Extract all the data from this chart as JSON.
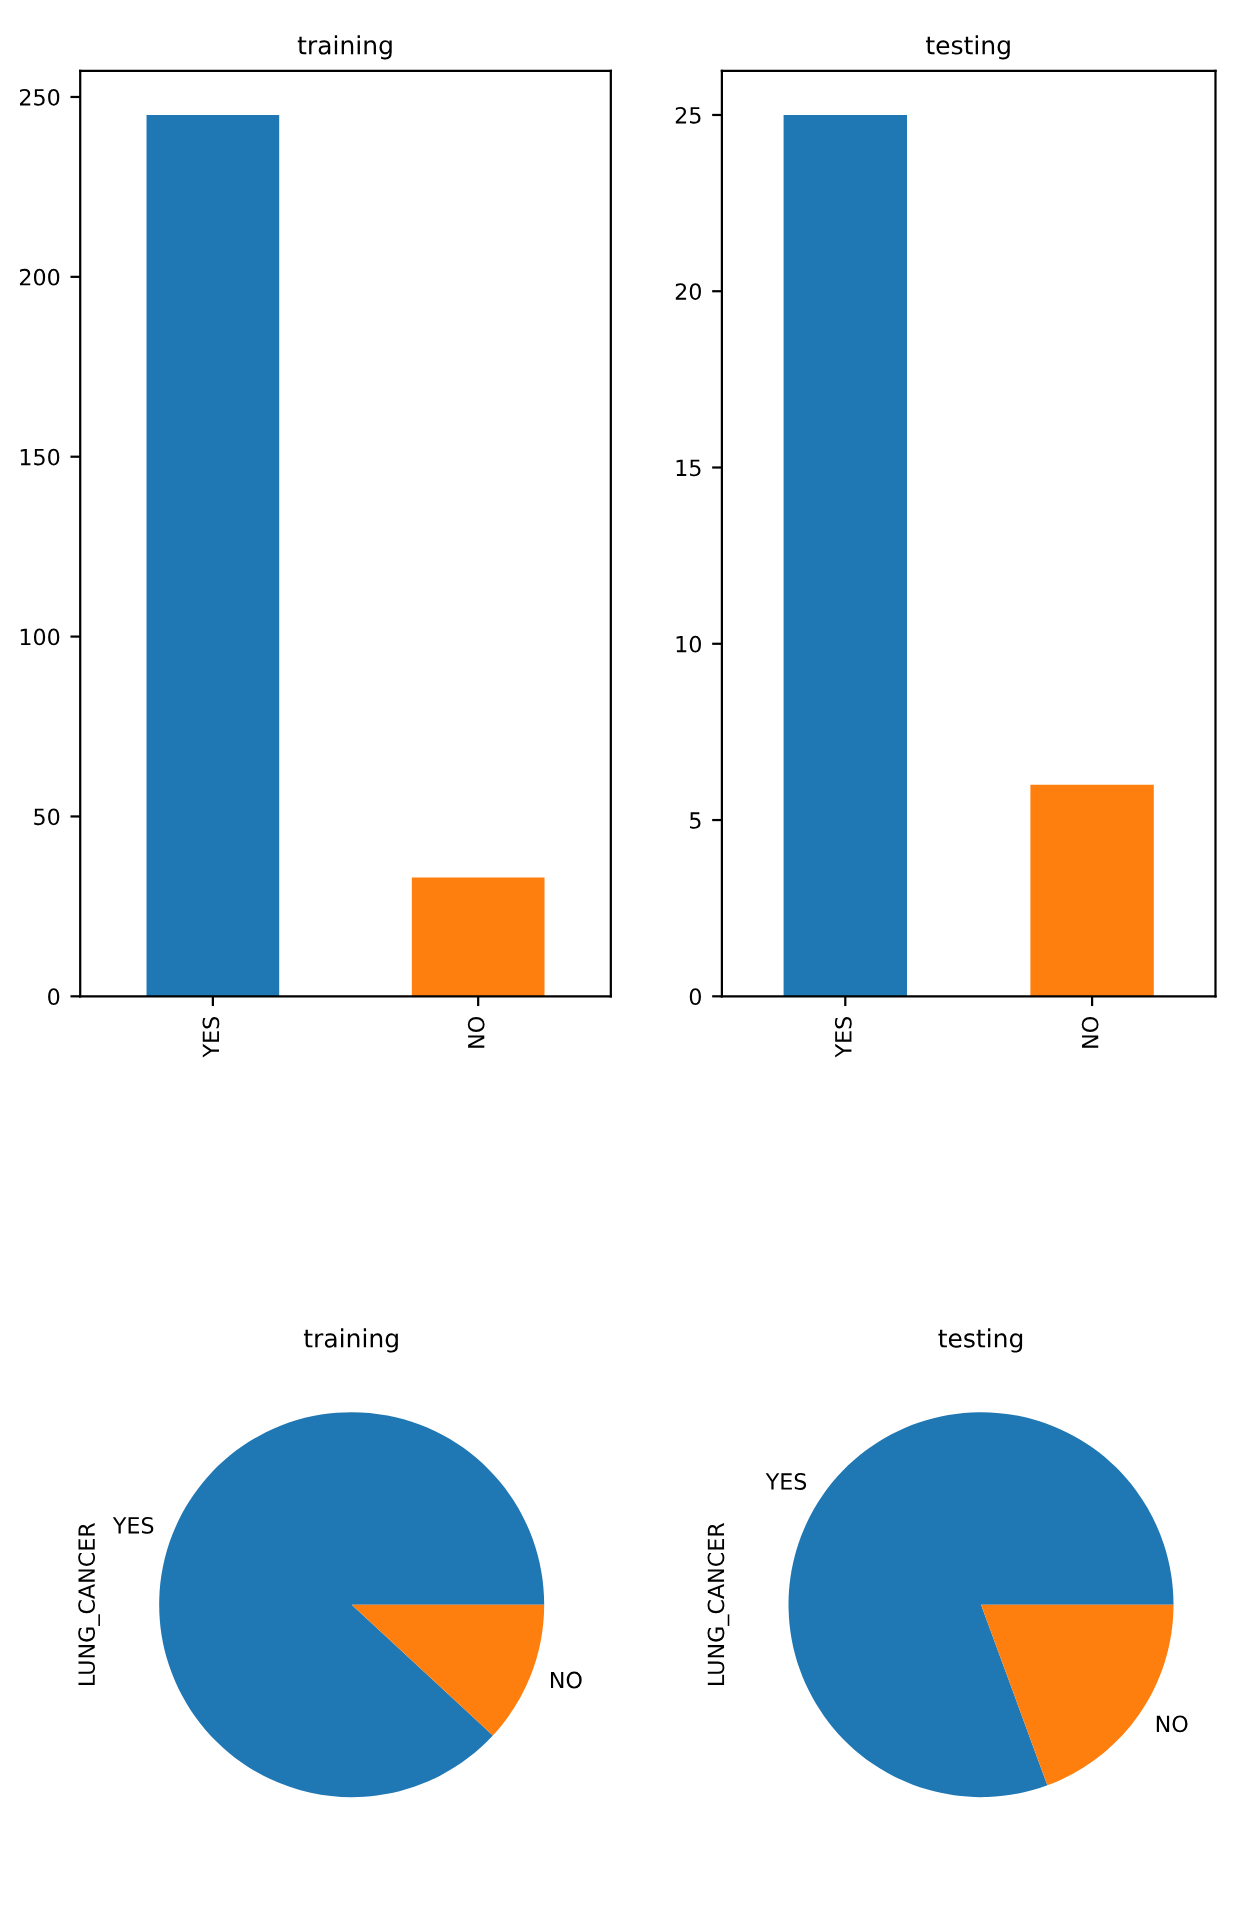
{
  "chart_data": [
    {
      "type": "bar",
      "title": "training",
      "categories": [
        "YES",
        "NO"
      ],
      "values": [
        245,
        33
      ],
      "colors": [
        "#1f77b4",
        "#ff7f0e"
      ],
      "ylim": [
        0,
        257.25
      ],
      "yticks": [
        0,
        50,
        100,
        150,
        200,
        250
      ],
      "grid": false,
      "legend": false
    },
    {
      "type": "bar",
      "title": "testing",
      "categories": [
        "YES",
        "NO"
      ],
      "values": [
        25,
        6
      ],
      "colors": [
        "#1f77b4",
        "#ff7f0e"
      ],
      "ylim": [
        0,
        26.25
      ],
      "yticks": [
        0,
        5,
        10,
        15,
        20,
        25
      ],
      "grid": false,
      "legend": false
    },
    {
      "type": "pie",
      "title": "training",
      "ylabel": "LUNG_CANCER",
      "categories": [
        "YES",
        "NO"
      ],
      "values": [
        88.1,
        11.9
      ],
      "colors": [
        "#1f77b4",
        "#ff7f0e"
      ],
      "legend": false
    },
    {
      "type": "pie",
      "title": "testing",
      "ylabel": "LUNG_CANCER",
      "categories": [
        "YES",
        "NO"
      ],
      "values": [
        80.6,
        19.4
      ],
      "colors": [
        "#1f77b4",
        "#ff7f0e"
      ],
      "legend": false
    }
  ]
}
